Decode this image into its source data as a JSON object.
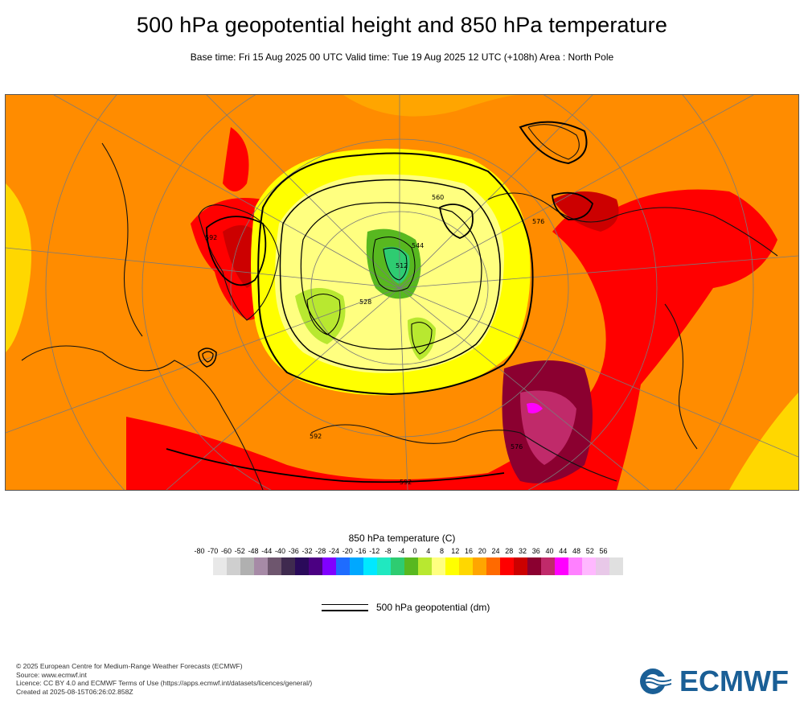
{
  "header": {
    "title": "500 hPa geopotential height and 850 hPa temperature",
    "subtitle": "Base time: Fri 15 Aug 2025 00 UTC Valid time: Tue 19 Aug 2025 12 UTC (+108h) Area : North Pole"
  },
  "map": {
    "contour_labels": [
      "592",
      "576",
      "560",
      "544",
      "528",
      "512",
      "592",
      "576",
      "592"
    ]
  },
  "temperature_legend": {
    "title": "850 hPa temperature (C)",
    "ticks": [
      "-80",
      "-70",
      "-60",
      "-52",
      "-48",
      "-44",
      "-40",
      "-36",
      "-32",
      "-28",
      "-24",
      "-20",
      "-16",
      "-12",
      "-8",
      "-4",
      "0",
      "4",
      "8",
      "12",
      "16",
      "20",
      "24",
      "28",
      "32",
      "36",
      "40",
      "44",
      "48",
      "52",
      "56"
    ],
    "colors": [
      "#e8e8e8",
      "#cfcfcf",
      "#b0b0b0",
      "#a68aa6",
      "#6e566e",
      "#3f2a4f",
      "#2a0a5a",
      "#4b0082",
      "#8000ff",
      "#1e6cff",
      "#00a8ff",
      "#00e8ff",
      "#20e8c0",
      "#2ecc71",
      "#58b820",
      "#b8e830",
      "#ffff80",
      "#ffff00",
      "#ffd700",
      "#ffa500",
      "#ff6a00",
      "#ff0000",
      "#cc0000",
      "#8b0030",
      "#c02a6a",
      "#ff00ff",
      "#ff80ff",
      "#ffb8ff",
      "#e8c8e8",
      "#e0e0e0"
    ]
  },
  "line_legend": {
    "label": "500 hPa geopotential (dm)"
  },
  "footer": {
    "lines": [
      "© 2025 European Centre for Medium-Range Weather Forecasts (ECMWF)",
      "Source: www.ecmwf.int",
      "Licence: CC BY 4.0 and ECMWF Terms of Use (https://apps.ecmwf.int/datasets/licences/general/)",
      "Created at 2025-08-15T06:26:02.858Z"
    ]
  },
  "logo": {
    "text": "ECMWF",
    "color": "#1a5f96"
  }
}
